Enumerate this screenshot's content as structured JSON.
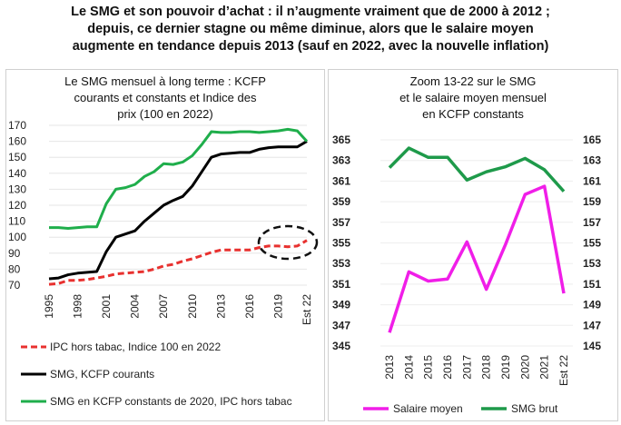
{
  "title_lines": [
    "Le SMG et son pouvoir d’achat : il n’augmente vraiment que de 2000 à 2012 ;",
    "depuis, ce dernier stagne ou même diminue, alors que le salaire moyen",
    "augmente en tendance depuis 2013 (sauf en 2022, avec la nouvelle inflation)"
  ],
  "chart_data": [
    {
      "type": "line",
      "title_lines": [
        "Le SMG mensuel à long terme : KCFP",
        "courants et constants et Indice des",
        "prix (100 en 2022)"
      ],
      "x": [
        "1995",
        "1996",
        "1997",
        "1998",
        "1999",
        "2000",
        "2001",
        "2002",
        "2003",
        "2004",
        "2005",
        "2006",
        "2007",
        "2008",
        "2009",
        "2010",
        "2011",
        "2012",
        "2013",
        "2014",
        "2015",
        "2016",
        "2017",
        "2018",
        "2019",
        "2020",
        "2021",
        "Est 22"
      ],
      "x_tick_labels": [
        "1995",
        "1998",
        "2001",
        "2004",
        "2007",
        "2010",
        "2013",
        "2016",
        "2019",
        "Est 22"
      ],
      "ylim": [
        70,
        170
      ],
      "y_ticks": [
        70,
        80,
        90,
        100,
        110,
        120,
        130,
        140,
        150,
        160,
        170
      ],
      "grid": true,
      "legend_placement": "bottom",
      "annotation": "dashed ellipse around IPC 2017-2022",
      "series": [
        {
          "name": "IPC hors tabac, Indice 100 en 2022",
          "color": "#e8312f",
          "style": "dashed",
          "values": [
            70.5,
            71,
            73,
            73,
            73.5,
            74.5,
            75.5,
            77,
            77.5,
            78,
            78.5,
            80,
            82,
            83,
            85,
            86.5,
            88.5,
            90.5,
            92,
            92,
            92,
            92,
            93.5,
            94.5,
            94.5,
            94,
            94.5,
            98
          ]
        },
        {
          "name": "SMG, KCFP courants",
          "color": "#000000",
          "style": "solid",
          "values": [
            74,
            74.5,
            76.5,
            77.5,
            78,
            78.5,
            91,
            100,
            102,
            104,
            110,
            115,
            120,
            123,
            125.5,
            132,
            141,
            150,
            152,
            152.5,
            153,
            153,
            155,
            156,
            156.5,
            156.5,
            156.5,
            160
          ]
        },
        {
          "name": "SMG en KCFP constants de 2020, IPC hors tabac",
          "color": "#1fae4b",
          "style": "solid",
          "values": [
            106,
            106,
            105.5,
            106,
            106.5,
            106.5,
            121,
            130,
            131,
            133,
            138,
            141,
            146,
            145.5,
            147,
            151,
            158,
            166,
            165.5,
            165.5,
            166,
            166,
            165.5,
            166,
            166.5,
            167.5,
            166.5,
            160
          ]
        }
      ]
    },
    {
      "type": "line",
      "title_lines": [
        "Zoom 13-22 sur  le SMG",
        "et le salaire moyen mensuel",
        "en KCFP constants"
      ],
      "x": [
        "2013",
        "2014",
        "2015",
        "2016",
        "2017",
        "2018",
        "2019",
        "2020",
        "2021",
        "Est 22"
      ],
      "y_left": {
        "lim": [
          345,
          365
        ],
        "ticks": [
          345,
          347,
          349,
          351,
          353,
          355,
          357,
          359,
          361,
          363,
          365
        ],
        "color": "#c93fd6"
      },
      "y_right": {
        "lim": [
          145,
          165
        ],
        "ticks": [
          145,
          147,
          149,
          151,
          153,
          155,
          157,
          159,
          161,
          163,
          165
        ],
        "color": "#2e9a5a"
      },
      "grid": true,
      "legend_placement": "bottom",
      "series": [
        {
          "name": "Salaire moyen",
          "axis": "left",
          "color": "#f01ee8",
          "values": [
            346.3,
            352.2,
            351.3,
            351.5,
            355.1,
            350.5,
            354.9,
            359.7,
            360.5,
            350.1
          ]
        },
        {
          "name": "SMG brut",
          "axis": "right",
          "color": "#1e9a4a",
          "values": [
            162.3,
            164.2,
            163.3,
            163.3,
            161.1,
            161.9,
            162.4,
            163.2,
            162.1,
            160.0
          ]
        }
      ]
    }
  ]
}
